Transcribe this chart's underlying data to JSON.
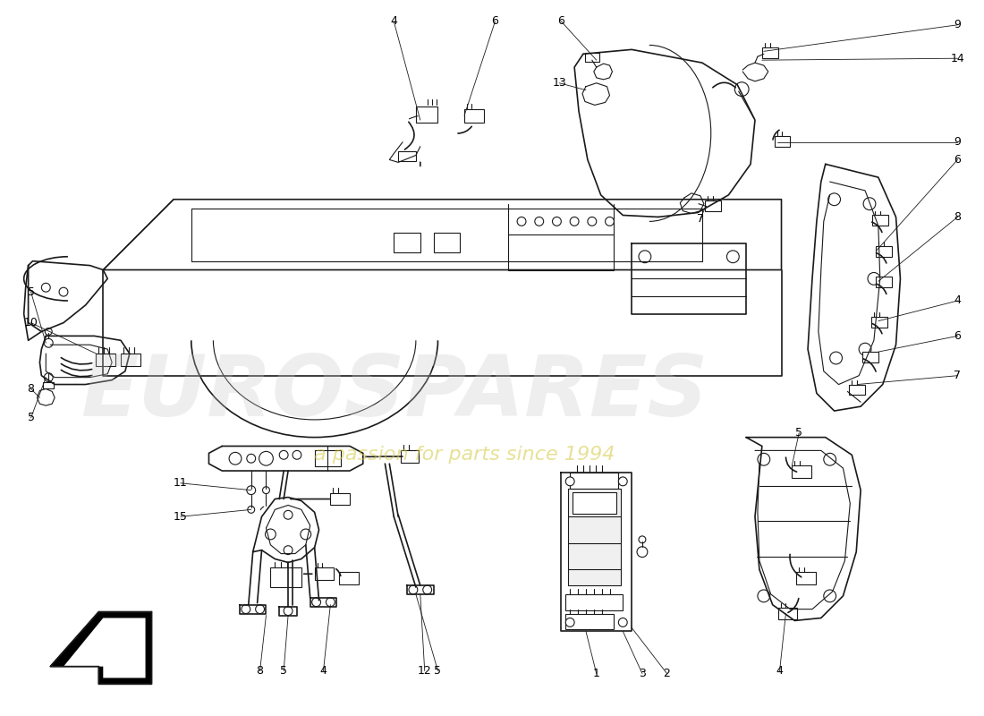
{
  "bg_color": "#ffffff",
  "watermark_text": "a passion for parts since 1994",
  "watermark_logo": "EUROSPARES",
  "fig_width": 11.0,
  "fig_height": 8.0,
  "line_color": "#1a1a1a",
  "callout_fontsize": 9,
  "watermark_color_logo": "#c8c8c8",
  "watermark_color_text": "#d4c840",
  "watermark_alpha_logo": 0.3,
  "watermark_alpha_text": 0.55
}
